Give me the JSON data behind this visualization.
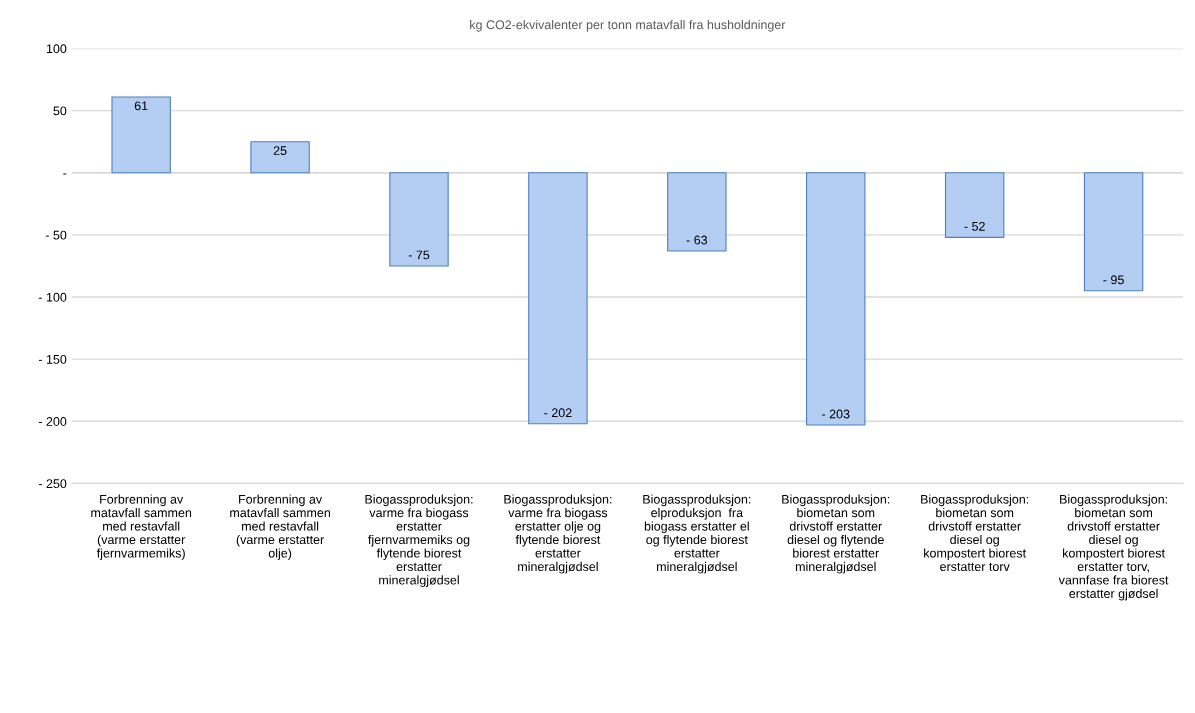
{
  "chart_data": {
    "type": "bar",
    "title": "kg CO2-ekvivalenter per tonn matavfall fra husholdninger",
    "categories": [
      "Forbrenning av\nmatavfall sammen\nmed restavfall\n(varme erstatter\nfjernvarmemiks)",
      "Forbrenning av\nmatavfall sammen\nmed restavfall\n(varme erstatter\nolje)",
      "Biogassproduksjon:\nvarme fra biogass\nerstatter\nfjernvarmemiks og\nflytende biorest\nerstatter\nmineralgjødsel",
      "Biogassproduksjon:\nvarme fra biogass\nerstatter olje og\nflytende biorest\nerstatter\nmineralgjødsel",
      "Biogassproduksjon:\nelproduksjon  fra\nbiogass erstatter el\nog flytende biorest\nerstatter\nmineralgjødsel",
      "Biogassproduksjon:\nbiometan som\ndrivstoff erstatter\ndiesel og flytende\nbiorest erstatter\nmineralgjødsel",
      "Biogassproduksjon:\nbiometan som\ndrivstoff erstatter\ndiesel og\nkompostert biorest\nerstatter torv",
      "Biogassproduksjon:\nbiometan som\ndrivstoff erstatter\ndiesel og\nkompostert biorest\nerstatter torv,\nvannfase fra biorest\nerstatter gjødsel"
    ],
    "values": [
      61,
      25,
      -75,
      -202,
      -63,
      -203,
      -52,
      -95
    ],
    "value_labels": [
      "61",
      "25",
      "- 75",
      "- 202",
      "- 63",
      "- 203",
      "- 52",
      "- 95"
    ],
    "color": "#b4cdf2",
    "ylim": [
      -250,
      100
    ],
    "yticks": [
      {
        "value": -250,
        "label": "- 250"
      },
      {
        "value": -200,
        "label": "- 200"
      },
      {
        "value": -150,
        "label": "- 150"
      },
      {
        "value": -100,
        "label": "- 100"
      },
      {
        "value": -50,
        "label": "- 50"
      },
      {
        "value": 0,
        "label": "-"
      },
      50,
      100
    ],
    "grid": "y"
  }
}
